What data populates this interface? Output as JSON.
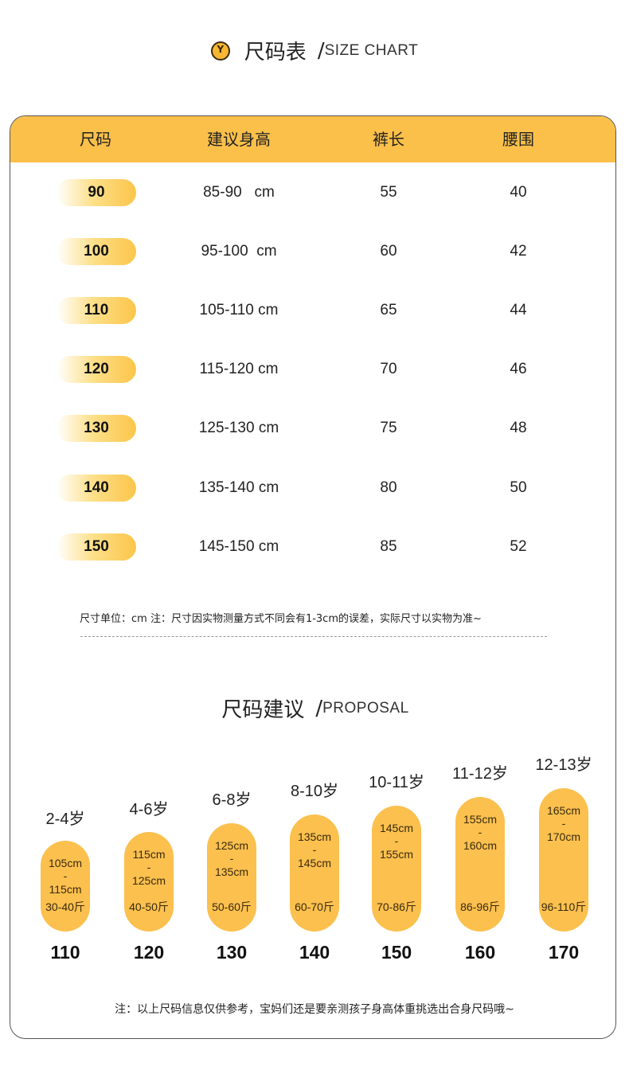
{
  "size_chart": {
    "title_cn": "尺码表",
    "slash": "/",
    "title_en": "SIZE CHART",
    "headers": [
      "尺码",
      "建议身高",
      "裤长",
      "腰围"
    ],
    "rows": [
      {
        "size": "90",
        "height": "85-90   cm",
        "length": "55",
        "waist": "40"
      },
      {
        "size": "100",
        "height": "95-100  cm",
        "length": "60",
        "waist": "42"
      },
      {
        "size": "110",
        "height": "105-110 cm",
        "length": "65",
        "waist": "44"
      },
      {
        "size": "120",
        "height": "115-120 cm",
        "length": "70",
        "waist": "46"
      },
      {
        "size": "130",
        "height": "125-130 cm",
        "length": "75",
        "waist": "48"
      },
      {
        "size": "140",
        "height": "135-140 cm",
        "length": "80",
        "waist": "50"
      },
      {
        "size": "150",
        "height": "145-150 cm",
        "length": "85",
        "waist": "52"
      }
    ],
    "note": "尺寸单位：cm    注：尺寸因实物测量方式不同会有1-3cm的误差，实际尺寸以实物为准~"
  },
  "proposal": {
    "title_cn": "尺码建议",
    "slash": "/",
    "title_en": "PROPOSAL",
    "items": [
      {
        "age": "2-4岁",
        "h_from": "105cm",
        "dash": "-",
        "h_to": "115cm",
        "weight": "30-40斤",
        "size": "110"
      },
      {
        "age": "4-6岁",
        "h_from": "115cm",
        "dash": "-",
        "h_to": "125cm",
        "weight": "40-50斤",
        "size": "120"
      },
      {
        "age": "6-8岁",
        "h_from": "125cm",
        "dash": "-",
        "h_to": "135cm",
        "weight": "50-60斤",
        "size": "130"
      },
      {
        "age": "8-10岁",
        "h_from": "135cm",
        "dash": "-",
        "h_to": "145cm",
        "weight": "60-70斤",
        "size": "140"
      },
      {
        "age": "10-11岁",
        "h_from": "145cm",
        "dash": "-",
        "h_to": "155cm",
        "weight": "70-86斤",
        "size": "150"
      },
      {
        "age": "11-12岁",
        "h_from": "155cm",
        "dash": "-",
        "h_to": "160cm",
        "weight": "86-96斤",
        "size": "160"
      },
      {
        "age": "12-13岁",
        "h_from": "165cm",
        "dash": "-",
        "h_to": "170cm",
        "weight": "96-110斤",
        "size": "170"
      }
    ],
    "note": "注：以上尺码信息仅供参考，宝妈们还是要亲测孩子身高体重挑选出合身尺码哦~"
  },
  "colors": {
    "accent": "#fbc049",
    "capsule": "#fbc04e",
    "border": "#555555"
  },
  "icons": {
    "logo": "circle-y-logo-icon"
  }
}
